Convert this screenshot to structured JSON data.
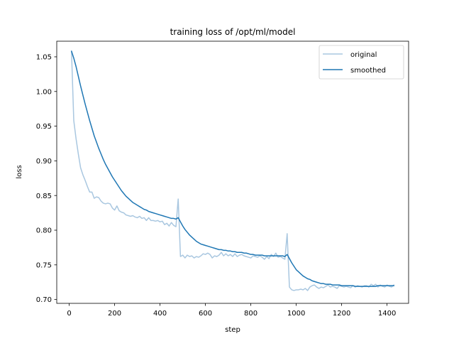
{
  "chart_data": {
    "type": "line",
    "title": "training loss of /opt/ml/model",
    "xlabel": "step",
    "ylabel": "loss",
    "xlim": [
      -55,
      1495
    ],
    "ylim": [
      0.6945,
      1.0725
    ],
    "xticks": [
      0,
      200,
      400,
      600,
      800,
      1000,
      1200,
      1400
    ],
    "yticks": [
      0.7,
      0.75,
      0.8,
      0.85,
      0.9,
      0.95,
      1.0,
      1.05
    ],
    "ytick_labels": [
      "0.70",
      "0.75",
      "0.80",
      "0.85",
      "0.90",
      "0.95",
      "1.00",
      "1.05"
    ],
    "grid": false,
    "legend_position": "top-right",
    "series": [
      {
        "name": "original",
        "color": "#a9c7e0",
        "x": [
          10,
          20,
          30,
          40,
          50,
          60,
          70,
          80,
          90,
          100,
          110,
          120,
          130,
          140,
          150,
          160,
          170,
          180,
          190,
          200,
          210,
          220,
          230,
          240,
          250,
          260,
          270,
          280,
          290,
          300,
          310,
          320,
          330,
          340,
          350,
          360,
          370,
          380,
          390,
          400,
          410,
          420,
          430,
          440,
          450,
          460,
          470,
          480,
          490,
          500,
          510,
          520,
          530,
          540,
          550,
          560,
          570,
          580,
          590,
          600,
          610,
          620,
          630,
          640,
          650,
          660,
          670,
          680,
          690,
          700,
          710,
          720,
          730,
          740,
          750,
          760,
          770,
          780,
          790,
          800,
          810,
          820,
          830,
          840,
          850,
          860,
          870,
          880,
          890,
          900,
          910,
          920,
          930,
          940,
          950,
          960,
          970,
          980,
          990,
          1000,
          1010,
          1020,
          1030,
          1040,
          1050,
          1060,
          1070,
          1080,
          1090,
          1100,
          1110,
          1120,
          1130,
          1140,
          1150,
          1160,
          1170,
          1180,
          1190,
          1200,
          1210,
          1220,
          1230,
          1240,
          1250,
          1260,
          1270,
          1280,
          1290,
          1300,
          1310,
          1320,
          1330,
          1340,
          1350,
          1360,
          1370,
          1380,
          1390,
          1400,
          1410,
          1420,
          1430
        ],
        "values": [
          1.058,
          0.958,
          0.932,
          0.91,
          0.89,
          0.88,
          0.872,
          0.863,
          0.855,
          0.855,
          0.846,
          0.848,
          0.847,
          0.842,
          0.839,
          0.838,
          0.839,
          0.838,
          0.832,
          0.829,
          0.835,
          0.828,
          0.826,
          0.825,
          0.822,
          0.821,
          0.82,
          0.821,
          0.819,
          0.818,
          0.82,
          0.817,
          0.818,
          0.814,
          0.818,
          0.814,
          0.814,
          0.813,
          0.814,
          0.812,
          0.813,
          0.808,
          0.81,
          0.806,
          0.811,
          0.807,
          0.805,
          0.845,
          0.762,
          0.764,
          0.76,
          0.764,
          0.762,
          0.763,
          0.76,
          0.762,
          0.761,
          0.763,
          0.766,
          0.765,
          0.767,
          0.765,
          0.76,
          0.763,
          0.762,
          0.764,
          0.768,
          0.763,
          0.766,
          0.763,
          0.765,
          0.762,
          0.766,
          0.762,
          0.764,
          0.765,
          0.763,
          0.762,
          0.761,
          0.76,
          0.763,
          0.762,
          0.761,
          0.763,
          0.761,
          0.758,
          0.762,
          0.759,
          0.765,
          0.762,
          0.767,
          0.761,
          0.762,
          0.76,
          0.758,
          0.795,
          0.718,
          0.714,
          0.713,
          0.714,
          0.714,
          0.715,
          0.714,
          0.716,
          0.713,
          0.718,
          0.72,
          0.721,
          0.718,
          0.716,
          0.718,
          0.717,
          0.719,
          0.721,
          0.718,
          0.719,
          0.718,
          0.716,
          0.72,
          0.719,
          0.718,
          0.719,
          0.718,
          0.717,
          0.72,
          0.718,
          0.72,
          0.719,
          0.718,
          0.72,
          0.72,
          0.718,
          0.722,
          0.72,
          0.722,
          0.718,
          0.721,
          0.719,
          0.718,
          0.721,
          0.719,
          0.718,
          0.721
        ]
      },
      {
        "name": "smoothed",
        "color": "#1f77b4",
        "x": [
          10,
          20,
          30,
          40,
          50,
          60,
          70,
          80,
          90,
          100,
          110,
          120,
          130,
          140,
          150,
          160,
          170,
          180,
          190,
          200,
          210,
          220,
          230,
          240,
          250,
          260,
          270,
          280,
          290,
          300,
          310,
          320,
          330,
          340,
          350,
          360,
          370,
          380,
          390,
          400,
          410,
          420,
          430,
          440,
          450,
          460,
          470,
          480,
          490,
          500,
          510,
          520,
          530,
          540,
          550,
          560,
          570,
          580,
          590,
          600,
          610,
          620,
          630,
          640,
          650,
          660,
          670,
          680,
          690,
          700,
          710,
          720,
          730,
          740,
          750,
          760,
          770,
          780,
          790,
          800,
          810,
          820,
          830,
          840,
          850,
          860,
          870,
          880,
          890,
          900,
          910,
          920,
          930,
          940,
          950,
          960,
          970,
          980,
          990,
          1000,
          1010,
          1020,
          1030,
          1040,
          1050,
          1060,
          1070,
          1080,
          1090,
          1100,
          1110,
          1120,
          1130,
          1140,
          1150,
          1160,
          1170,
          1180,
          1190,
          1200,
          1210,
          1220,
          1230,
          1240,
          1250,
          1260,
          1270,
          1280,
          1290,
          1300,
          1310,
          1320,
          1330,
          1340,
          1350,
          1360,
          1370,
          1380,
          1390,
          1400,
          1410,
          1420,
          1430
        ],
        "values": [
          1.058,
          1.048,
          1.036,
          1.022,
          1.008,
          0.995,
          0.982,
          0.97,
          0.958,
          0.947,
          0.936,
          0.927,
          0.918,
          0.91,
          0.902,
          0.895,
          0.889,
          0.883,
          0.877,
          0.872,
          0.867,
          0.862,
          0.857,
          0.853,
          0.849,
          0.846,
          0.843,
          0.84,
          0.838,
          0.836,
          0.834,
          0.832,
          0.83,
          0.829,
          0.827,
          0.826,
          0.825,
          0.824,
          0.823,
          0.822,
          0.821,
          0.82,
          0.819,
          0.818,
          0.817,
          0.817,
          0.816,
          0.818,
          0.812,
          0.806,
          0.801,
          0.797,
          0.793,
          0.79,
          0.787,
          0.784,
          0.782,
          0.78,
          0.779,
          0.778,
          0.777,
          0.776,
          0.775,
          0.774,
          0.773,
          0.772,
          0.772,
          0.771,
          0.771,
          0.77,
          0.77,
          0.769,
          0.769,
          0.768,
          0.768,
          0.768,
          0.767,
          0.767,
          0.766,
          0.765,
          0.765,
          0.764,
          0.764,
          0.764,
          0.764,
          0.763,
          0.763,
          0.763,
          0.763,
          0.763,
          0.763,
          0.763,
          0.763,
          0.763,
          0.762,
          0.765,
          0.759,
          0.753,
          0.748,
          0.743,
          0.74,
          0.737,
          0.734,
          0.732,
          0.73,
          0.729,
          0.727,
          0.726,
          0.725,
          0.724,
          0.723,
          0.723,
          0.722,
          0.722,
          0.722,
          0.721,
          0.721,
          0.721,
          0.721,
          0.72,
          0.72,
          0.72,
          0.72,
          0.72,
          0.72,
          0.719,
          0.719,
          0.719,
          0.719,
          0.719,
          0.719,
          0.719,
          0.719,
          0.719,
          0.719,
          0.72,
          0.72,
          0.72,
          0.72,
          0.72,
          0.72,
          0.72,
          0.72
        ]
      }
    ]
  }
}
